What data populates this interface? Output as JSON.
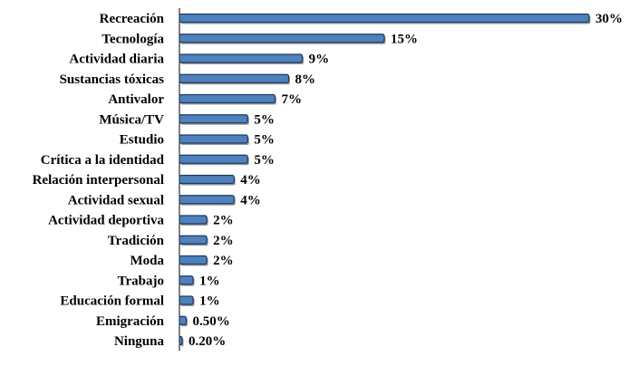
{
  "chart_data": {
    "type": "bar",
    "orientation": "horizontal",
    "categories": [
      "Recreación",
      "Tecnología",
      "Actividad diaria",
      "Sustancias tóxicas",
      "Antivalor",
      "Música/TV",
      "Estudio",
      "Crítica a la identidad",
      "Relación interpersonal",
      "Actividad sexual",
      "Actividad deportiva",
      "Tradición",
      "Moda",
      "Trabajo",
      "Educación formal",
      "Emigración",
      "Ninguna"
    ],
    "values": [
      30,
      15,
      9,
      8,
      7,
      5,
      5,
      5,
      4,
      4,
      2,
      2,
      2,
      1,
      1,
      0.5,
      0.2
    ],
    "value_labels": [
      "30%",
      "15%",
      "9%",
      "8%",
      "7%",
      "5%",
      "5%",
      "5%",
      "4%",
      "4%",
      "2%",
      "2%",
      "2%",
      "1%",
      "1%",
      "0.50%",
      "0.20%"
    ],
    "xlim": [
      0,
      30
    ],
    "grid": false,
    "legend": "none",
    "bar_color": "#4f81bd",
    "bar_edge_color": "#1f3a63"
  }
}
